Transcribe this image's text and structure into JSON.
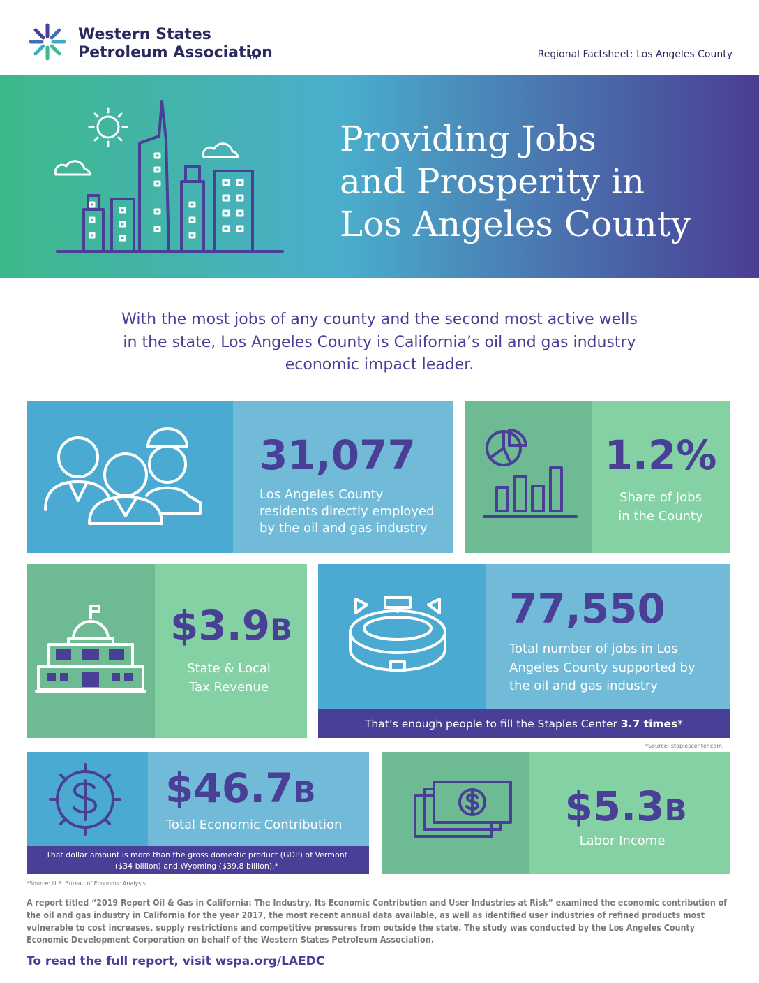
{
  "header": {
    "org_line1": "Western States",
    "org_line2": "Petroleum Association",
    "trademark": "TM",
    "factsheet": "Regional Factsheet: Los Angeles County"
  },
  "hero": {
    "title_lines": [
      "Providing Jobs",
      "and Prosperity in",
      "Los Angeles County"
    ]
  },
  "intro_lines": [
    "With the most jobs of any county and the second most active wells",
    "in the state, Los Angeles County is California’s oil and gas industry",
    "economic impact leader."
  ],
  "stats": [
    {
      "value": "31,077",
      "label_lines": [
        "Los Angeles County",
        "residents directly employed",
        "by the oil and gas industry"
      ]
    },
    {
      "value": "1.2%",
      "label_lines": [
        "Share of Jobs",
        "in the County"
      ]
    },
    {
      "value": "$3.9",
      "unit": "B",
      "label_lines": [
        "State & Local",
        "Tax Revenue"
      ]
    },
    {
      "value": "77,550",
      "label_lines": [
        "Total number of jobs in Los",
        "Angeles County supported by",
        "the oil and gas industry"
      ],
      "note": "That’s enough people to fill the Staples Center ",
      "note_emphasis": "3.7 times",
      "note_marker": "*",
      "source": "*Source: staplescenter.com"
    },
    {
      "value": "$46.7",
      "unit": "B",
      "label_lines": [
        "Total Economic Contribution"
      ],
      "note_lines": [
        "That dollar amount is more than the gross domestic product (GDP) of Vermont",
        "($34 billion) and Wyoming ($39.8 billion).*"
      ],
      "source": "*Source: U.S. Bureau of Economic Analysis"
    },
    {
      "value": "$5.3",
      "unit": "B",
      "label_lines": [
        "Labor Income"
      ]
    }
  ],
  "footer": {
    "paragraph_lines": [
      "A report titled “2019 Report Oil & Gas in California: The Industry, Its Economic Contribution and User Industries at Risk” examined the economic contribution of",
      "the oil and gas industry in California for the year 2017, the most recent annual data available, as well as identified user industries of refined products most",
      "vulnerable to cost increases, supply restrictions and competitive pressures from outside the state. The study was conducted by the Los Angeles County",
      "Economic Development Corporation on behalf of the Western States Petroleum Association."
    ],
    "cta": "To read the full report, visit ",
    "cta_link": "wspa.org/LAEDC"
  }
}
